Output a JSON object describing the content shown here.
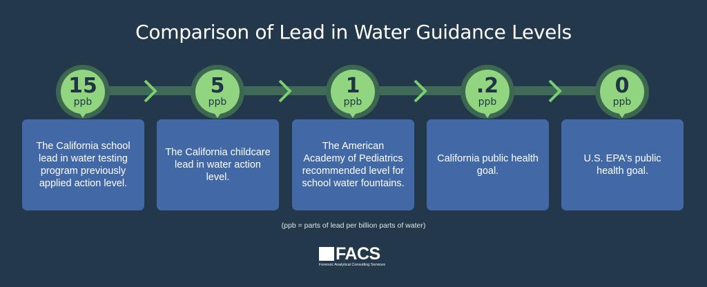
{
  "title": "Comparison of Lead in Water Guidance Levels",
  "colors": {
    "background": "#23384a",
    "bar": "#3f6a57",
    "circle": "#92d580",
    "box": "#4269a6"
  },
  "levels": [
    {
      "value": "15",
      "unit": "ppb",
      "text": "The California school lead in water testing program previously applied action level."
    },
    {
      "value": "5",
      "unit": "ppb",
      "text": "The California childcare lead in water action level."
    },
    {
      "value": "1",
      "unit": "ppb",
      "text": "The American Academy of Pediatrics recommended level for school water fountains."
    },
    {
      "value": ".2",
      "unit": "ppb",
      "text": "California public health goal."
    },
    {
      "value": "0",
      "unit": "ppb",
      "text": "U.S. EPA's public health goal."
    }
  ],
  "note": "(ppb = parts of lead per billion parts of water)",
  "logo": {
    "name": "FACS",
    "subtitle": "Forensic Analytical Consulting Services"
  }
}
